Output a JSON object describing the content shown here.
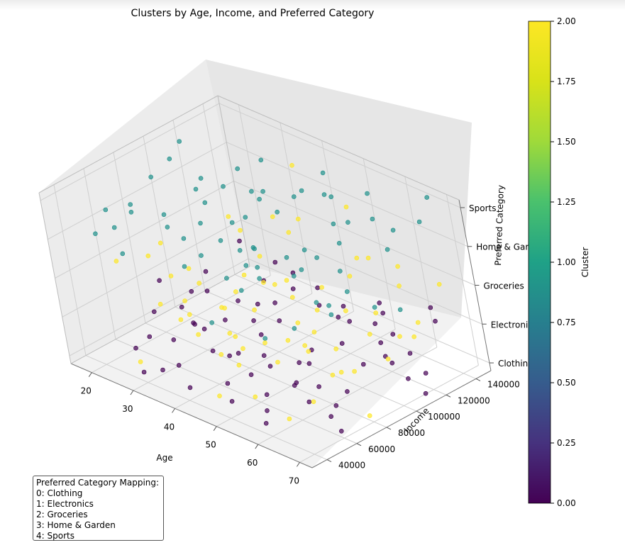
{
  "chart_data": {
    "type": "scatter",
    "title": "Clusters by Age, Income, and Preferred Category",
    "xlabel": "Age",
    "ylabel": "Income",
    "zlabel": "Preferred Category",
    "x_ticks": [
      "20",
      "30",
      "40",
      "50",
      "60",
      "70"
    ],
    "y_ticks": [
      "40000",
      "60000",
      "80000",
      "100000",
      "120000",
      "140000"
    ],
    "z_ticks": [
      "Clothing",
      "Electronics",
      "Groceries",
      "Home & Garden",
      "Sports"
    ],
    "xlim": [
      15,
      73
    ],
    "ylim": [
      30000,
      150000
    ],
    "zlim": [
      -0.2,
      4.2
    ],
    "colorbar": {
      "label": "Cluster",
      "ticks": [
        "0.00",
        "0.25",
        "0.50",
        "0.75",
        "1.00",
        "1.25",
        "1.50",
        "1.75",
        "2.00"
      ],
      "range": [
        0,
        2
      ],
      "colormap": "viridis"
    },
    "legend_box": {
      "title": "Preferred Category Mapping:",
      "items": [
        "0: Clothing",
        "1: Electronics",
        "2: Groceries",
        "3: Home & Garden",
        "4: Sports"
      ]
    },
    "colors": {
      "cluster_0": "#440154",
      "cluster_1": "#21918c",
      "cluster_2": "#fde725"
    },
    "series": [
      {
        "cluster": 0,
        "points": [
          [
            22,
            55000,
            0
          ],
          [
            25,
            72000,
            0
          ],
          [
            28,
            91000,
            1
          ],
          [
            31,
            48000,
            0
          ],
          [
            34,
            65000,
            1
          ],
          [
            37,
            82000,
            0
          ],
          [
            40,
            103000,
            1
          ],
          [
            43,
            58000,
            0
          ],
          [
            46,
            77000,
            1
          ],
          [
            49,
            96000,
            0
          ],
          [
            52,
            112000,
            1
          ],
          [
            55,
            51000,
            0
          ],
          [
            58,
            69000,
            1
          ],
          [
            61,
            88000,
            0
          ],
          [
            64,
            107000,
            1
          ],
          [
            67,
            124000,
            0
          ],
          [
            69,
            45000,
            1
          ],
          [
            24,
            118000,
            0
          ],
          [
            30,
            131000,
            1
          ],
          [
            36,
            139000,
            0
          ],
          [
            42,
            126000,
            1
          ],
          [
            48,
            143000,
            0
          ],
          [
            54,
            134000,
            1
          ],
          [
            60,
            121000,
            0
          ],
          [
            66,
            138000,
            1
          ],
          [
            19,
            84000,
            1
          ],
          [
            27,
            101000,
            0
          ],
          [
            33,
            115000,
            1
          ],
          [
            39,
            44000,
            0
          ],
          [
            45,
            92000,
            1
          ],
          [
            51,
            62000,
            0
          ],
          [
            57,
            128000,
            1
          ],
          [
            63,
            75000,
            0
          ],
          [
            68,
            99000,
            1
          ],
          [
            21,
            67000,
            0
          ],
          [
            26,
            86000,
            1
          ],
          [
            32,
            56000,
            0
          ],
          [
            38,
            97000,
            1
          ],
          [
            44,
            71000,
            0
          ],
          [
            50,
            121000,
            1
          ],
          [
            56,
            83000,
            0
          ],
          [
            62,
            146000,
            1
          ],
          [
            70,
            59000,
            0
          ],
          [
            23,
            104000,
            1
          ],
          [
            29,
            41000,
            0
          ],
          [
            35,
            129000,
            1
          ],
          [
            41,
            88000,
            0
          ],
          [
            47,
            53000,
            1
          ],
          [
            53,
            141000,
            0
          ],
          [
            59,
            95000,
            1
          ],
          [
            65,
            66000,
            0
          ],
          [
            20,
            135000,
            1
          ],
          [
            72,
            110000,
            0
          ],
          [
            39,
            118000,
            1
          ],
          [
            58,
            42000,
            0
          ],
          [
            33,
            76000,
            0
          ],
          [
            46,
            106000,
            0
          ],
          [
            63,
            52000,
            1
          ],
          [
            26,
            61000,
            1
          ],
          [
            52,
            79000,
            0
          ],
          [
            18,
            97000,
            0
          ],
          [
            44,
            137000,
            0
          ],
          [
            67,
            87000,
            1
          ],
          [
            31,
            109000,
            0
          ],
          [
            55,
            58000,
            1
          ],
          [
            60,
            133000,
            0
          ],
          [
            37,
            64000,
            1
          ],
          [
            48,
            47000,
            0
          ],
          [
            24,
            89000,
            0
          ],
          [
            66,
            115000,
            0
          ]
        ]
      },
      {
        "cluster": 1,
        "points": [
          [
            21,
            58000,
            3
          ],
          [
            24,
            79000,
            4
          ],
          [
            27,
            102000,
            3
          ],
          [
            30,
            49000,
            4
          ],
          [
            33,
            71000,
            3
          ],
          [
            36,
            94000,
            4
          ],
          [
            39,
            117000,
            3
          ],
          [
            42,
            62000,
            4
          ],
          [
            45,
            85000,
            3
          ],
          [
            48,
            108000,
            4
          ],
          [
            51,
            131000,
            3
          ],
          [
            54,
            55000,
            4
          ],
          [
            57,
            78000,
            3
          ],
          [
            60,
            101000,
            4
          ],
          [
            63,
            124000,
            3
          ],
          [
            66,
            147000,
            4
          ],
          [
            69,
            68000,
            3
          ],
          [
            19,
            112000,
            4
          ],
          [
            23,
            135000,
            3
          ],
          [
            26,
            43000,
            4
          ],
          [
            29,
            89000,
            2
          ],
          [
            32,
            127000,
            3
          ],
          [
            35,
            57000,
            4
          ],
          [
            38,
            81000,
            2
          ],
          [
            41,
            143000,
            3
          ],
          [
            44,
            96000,
            4
          ],
          [
            47,
            46000,
            2
          ],
          [
            50,
            73000,
            3
          ],
          [
            53,
            119000,
            4
          ],
          [
            56,
            91000,
            2
          ],
          [
            59,
            139000,
            3
          ],
          [
            62,
            64000,
            4
          ],
          [
            65,
            105000,
            2
          ],
          [
            68,
            83000,
            3
          ],
          [
            71,
            128000,
            4
          ],
          [
            18,
            67000,
            2
          ],
          [
            22,
            97000,
            4
          ],
          [
            28,
            74000,
            3
          ],
          [
            34,
            110000,
            2
          ],
          [
            40,
            52000,
            3
          ],
          [
            46,
            133000,
            4
          ],
          [
            52,
            99000,
            3
          ],
          [
            58,
            51000,
            2
          ],
          [
            64,
            116000,
            4
          ],
          [
            70,
            42000,
            3
          ],
          [
            25,
            121000,
            2
          ],
          [
            31,
            93000,
            4
          ],
          [
            37,
            139000,
            3
          ],
          [
            43,
            77000,
            2
          ],
          [
            49,
            56000,
            4
          ],
          [
            55,
            114000,
            3
          ],
          [
            61,
            87000,
            2
          ],
          [
            67,
            60000,
            4
          ],
          [
            20,
            48000,
            3
          ],
          [
            36,
            104000,
            3
          ],
          [
            45,
            122000,
            2
          ],
          [
            62,
            95000,
            3
          ],
          [
            28,
            54000,
            4
          ],
          [
            53,
            66000,
            3
          ],
          [
            41,
            99000,
            4
          ],
          [
            24,
            148000,
            3
          ],
          [
            33,
            84000,
            4
          ],
          [
            57,
            132000,
            4
          ],
          [
            69,
            111000,
            2
          ],
          [
            48,
            71000,
            3
          ]
        ]
      },
      {
        "cluster": 2,
        "points": [
          [
            22,
            73000,
            2
          ],
          [
            25,
            94000,
            1
          ],
          [
            28,
            118000,
            2
          ],
          [
            31,
            61000,
            3
          ],
          [
            34,
            84000,
            1
          ],
          [
            37,
            106000,
            2
          ],
          [
            40,
            129000,
            4
          ],
          [
            43,
            68000,
            1
          ],
          [
            46,
            91000,
            2
          ],
          [
            49,
            114000,
            0
          ],
          [
            52,
            137000,
            2
          ],
          [
            55,
            63000,
            1
          ],
          [
            58,
            86000,
            2
          ],
          [
            61,
            109000,
            3
          ],
          [
            64,
            132000,
            1
          ],
          [
            67,
            55000,
            2
          ],
          [
            70,
            78000,
            0
          ],
          [
            20,
            101000,
            1
          ],
          [
            23,
            124000,
            2
          ],
          [
            26,
            47000,
            0
          ],
          [
            29,
            137000,
            2
          ],
          [
            32,
            99000,
            1
          ],
          [
            35,
            76000,
            0
          ],
          [
            38,
            53000,
            2
          ],
          [
            41,
            112000,
            1
          ],
          [
            44,
            89000,
            2
          ],
          [
            47,
            141000,
            3
          ],
          [
            50,
            57000,
            0
          ],
          [
            53,
            103000,
            2
          ],
          [
            56,
            126000,
            1
          ],
          [
            59,
            71000,
            0
          ],
          [
            62,
            94000,
            2
          ],
          [
            65,
            117000,
            1
          ],
          [
            68,
            140000,
            2
          ],
          [
            19,
            60000,
            2
          ],
          [
            27,
            83000,
            0
          ],
          [
            33,
            143000,
            2
          ],
          [
            39,
            92000,
            1
          ],
          [
            45,
            47000,
            0
          ],
          [
            51,
            81000,
            1
          ],
          [
            57,
            104000,
            0
          ],
          [
            63,
            127000,
            2
          ],
          [
            69,
            98000,
            1
          ],
          [
            24,
            109000,
            0
          ],
          [
            30,
            66000,
            2
          ],
          [
            36,
            122000,
            1
          ],
          [
            42,
            45000,
            2
          ],
          [
            48,
            96000,
            1
          ],
          [
            54,
            119000,
            2
          ],
          [
            60,
            52000,
            0
          ],
          [
            66,
            75000,
            1
          ],
          [
            21,
            88000,
            0
          ],
          [
            40,
            74000,
            0
          ],
          [
            55,
            95000,
            0
          ],
          [
            35,
            131000,
            2
          ],
          [
            47,
            62000,
            1
          ],
          [
            63,
            70000,
            2
          ],
          [
            29,
            113000,
            1
          ],
          [
            52,
            44000,
            2
          ],
          [
            44,
            107000,
            0
          ],
          [
            67,
            121000,
            1
          ],
          [
            25,
            68000,
            1
          ],
          [
            58,
            140000,
            2
          ],
          [
            38,
            97000,
            0
          ],
          [
            71,
            85000,
            2
          ]
        ]
      }
    ]
  }
}
